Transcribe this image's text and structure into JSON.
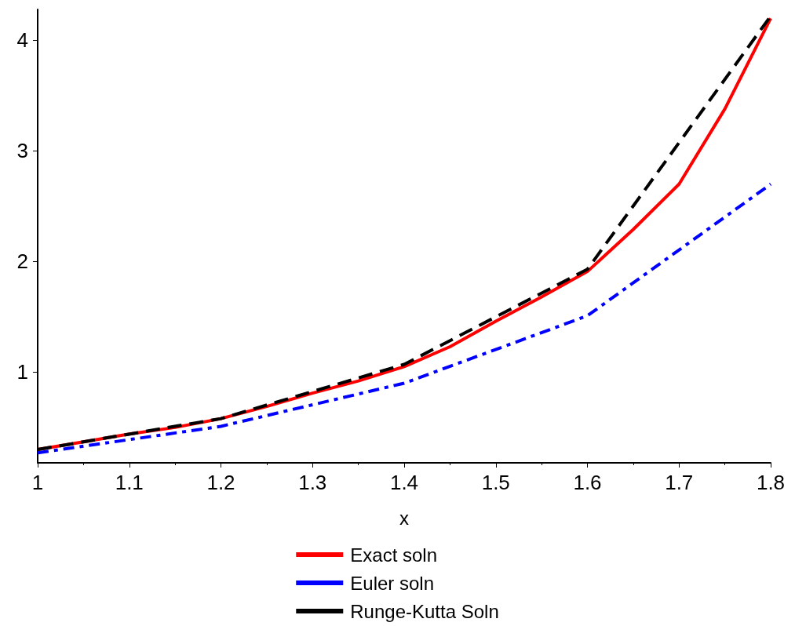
{
  "chart_data": {
    "type": "line",
    "xlabel": "x",
    "xlim": [
      1,
      1.8
    ],
    "xticks": [
      1,
      1.1,
      1.2,
      1.3,
      1.4,
      1.5,
      1.6,
      1.7,
      1.8
    ],
    "ylim": [
      0.18,
      4.28
    ],
    "yticks": [
      1,
      2,
      3,
      4
    ],
    "grid": false,
    "legend": "bottom",
    "marker": "none",
    "series": [
      {
        "name": "Exact soln",
        "color": "#ff0000",
        "line_style": "solid",
        "x": [
          1,
          1.05,
          1.1,
          1.15,
          1.2,
          1.25,
          1.3,
          1.35,
          1.4,
          1.45,
          1.5,
          1.55,
          1.6,
          1.65,
          1.7,
          1.75,
          1.8
        ],
        "values": [
          0.3,
          0.37,
          0.44,
          0.5,
          0.58,
          0.69,
          0.81,
          0.92,
          1.05,
          1.23,
          1.46,
          1.68,
          1.91,
          2.29,
          2.7,
          3.38,
          4.2
        ]
      },
      {
        "name": "Euler soln",
        "color": "#0000ff",
        "line_style": "dashdot",
        "x": [
          1,
          1.2,
          1.4,
          1.6,
          1.8
        ],
        "values": [
          0.27,
          0.51,
          0.9,
          1.51,
          2.7
        ]
      },
      {
        "name": "Runge-Kutta Soln",
        "color": "#000000",
        "line_style": "dashed",
        "x": [
          1,
          1.2,
          1.4,
          1.6,
          1.8
        ],
        "values": [
          0.3,
          0.58,
          1.07,
          1.93,
          4.22
        ]
      }
    ]
  }
}
